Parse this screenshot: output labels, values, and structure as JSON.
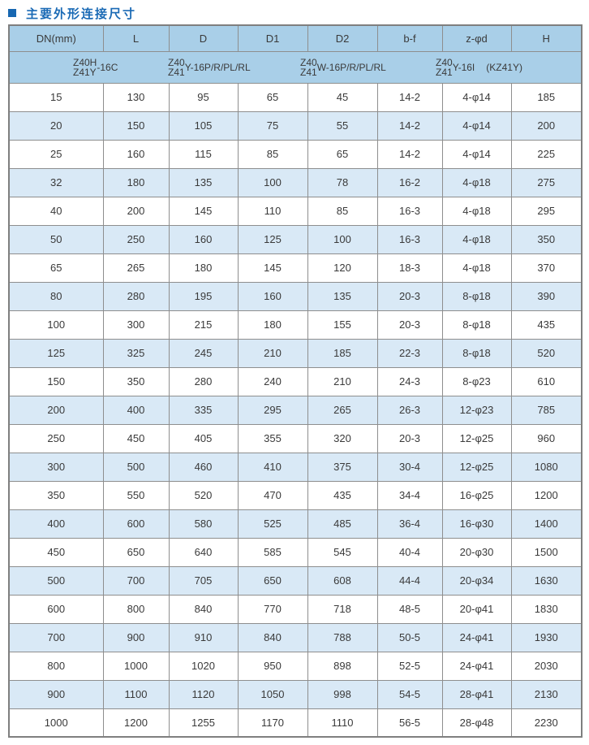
{
  "title": {
    "text": "主要外形连接尺寸",
    "accent_color": "#1767b1"
  },
  "table": {
    "columns": [
      "DN(mm)",
      "L",
      "D",
      "D1",
      "D2",
      "b-f",
      "z-φd",
      "H"
    ],
    "models": [
      {
        "top": "Z40H",
        "bottom": "Z41Y",
        "suffix": "-16C",
        "suffix2": ""
      },
      {
        "top": "Z40",
        "bottom": "Z41",
        "suffix": "Y-16P/R/PL/RL",
        "suffix2": ""
      },
      {
        "top": "Z40",
        "bottom": "Z41",
        "suffix": "W-16P/R/PL/RL",
        "suffix2": ""
      },
      {
        "top": "Z40",
        "bottom": "Z41",
        "suffix": "Y-16I",
        "suffix2": "(KZ41Y)"
      }
    ],
    "rows": [
      [
        "15",
        "130",
        "95",
        "65",
        "45",
        "14-2",
        "4-φ14",
        "185"
      ],
      [
        "20",
        "150",
        "105",
        "75",
        "55",
        "14-2",
        "4-φ14",
        "200"
      ],
      [
        "25",
        "160",
        "115",
        "85",
        "65",
        "14-2",
        "4-φ14",
        "225"
      ],
      [
        "32",
        "180",
        "135",
        "100",
        "78",
        "16-2",
        "4-φ18",
        "275"
      ],
      [
        "40",
        "200",
        "145",
        "110",
        "85",
        "16-3",
        "4-φ18",
        "295"
      ],
      [
        "50",
        "250",
        "160",
        "125",
        "100",
        "16-3",
        "4-φ18",
        "350"
      ],
      [
        "65",
        "265",
        "180",
        "145",
        "120",
        "18-3",
        "4-φ18",
        "370"
      ],
      [
        "80",
        "280",
        "195",
        "160",
        "135",
        "20-3",
        "8-φ18",
        "390"
      ],
      [
        "100",
        "300",
        "215",
        "180",
        "155",
        "20-3",
        "8-φ18",
        "435"
      ],
      [
        "125",
        "325",
        "245",
        "210",
        "185",
        "22-3",
        "8-φ18",
        "520"
      ],
      [
        "150",
        "350",
        "280",
        "240",
        "210",
        "24-3",
        "8-φ23",
        "610"
      ],
      [
        "200",
        "400",
        "335",
        "295",
        "265",
        "26-3",
        "12-φ23",
        "785"
      ],
      [
        "250",
        "450",
        "405",
        "355",
        "320",
        "20-3",
        "12-φ25",
        "960"
      ],
      [
        "300",
        "500",
        "460",
        "410",
        "375",
        "30-4",
        "12-φ25",
        "1080"
      ],
      [
        "350",
        "550",
        "520",
        "470",
        "435",
        "34-4",
        "16-φ25",
        "1200"
      ],
      [
        "400",
        "600",
        "580",
        "525",
        "485",
        "36-4",
        "16-φ30",
        "1400"
      ],
      [
        "450",
        "650",
        "640",
        "585",
        "545",
        "40-4",
        "20-φ30",
        "1500"
      ],
      [
        "500",
        "700",
        "705",
        "650",
        "608",
        "44-4",
        "20-φ34",
        "1630"
      ],
      [
        "600",
        "800",
        "840",
        "770",
        "718",
        "48-5",
        "20-φ41",
        "1830"
      ],
      [
        "700",
        "900",
        "910",
        "840",
        "788",
        "50-5",
        "24-φ41",
        "1930"
      ],
      [
        "800",
        "1000",
        "1020",
        "950",
        "898",
        "52-5",
        "24-φ41",
        "2030"
      ],
      [
        "900",
        "1100",
        "1120",
        "1050",
        "998",
        "54-5",
        "28-φ41",
        "2130"
      ],
      [
        "1000",
        "1200",
        "1255",
        "1170",
        "1110",
        "56-5",
        "28-φ48",
        "2230"
      ]
    ],
    "colors": {
      "header_bg": "#a9cfe8",
      "row_alt_bg": "#d9e9f6",
      "row_bg": "#ffffff",
      "border": "#8e8e8e",
      "text": "#3a3a3a"
    }
  }
}
